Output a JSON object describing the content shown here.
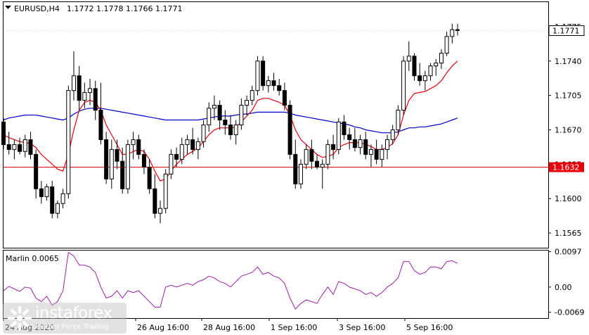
{
  "header": {
    "symbol": "EURUSD,H4",
    "ohlc": "1.1772 1.1778 1.1766 1.1771"
  },
  "price_tags": {
    "current": "1.1771",
    "level": "1.1632"
  },
  "indicator": {
    "title": "Marlin 0.0065",
    "ticks": [
      "0.0097",
      "0.00",
      "-0.0069"
    ]
  },
  "watermark": {
    "name": "instaforex",
    "tagline": "Instant Forex Trading"
  },
  "colors": {
    "bull_body": "#ffffff",
    "bear_body": "#000000",
    "ma_fast": "#e8000b",
    "ma_slow": "#0000cc",
    "level_line": "#e8000b",
    "oscillator": "#9b1fa8",
    "price_tag_bg": "#e8000b"
  },
  "chart_data": {
    "type": "candlestick",
    "title": "EURUSD,H4",
    "y_ticks": [
      "1.1775",
      "1.1740",
      "1.1705",
      "1.1670",
      "1.1635",
      "1.1600",
      "1.1565"
    ],
    "x_ticks": [
      "24 Aug 2020",
      "26 Aug 16:00",
      "28 Aug 16:00",
      "1 Sep 16:00",
      "3 Sep 16:00",
      "5 Sep 16:00"
    ],
    "ylim": [
      1.155,
      1.18
    ],
    "horizontal_level": 1.1632,
    "candles": [
      [
        1.1678,
        1.1682,
        1.165,
        1.1655
      ],
      [
        1.1655,
        1.1668,
        1.1645,
        1.165
      ],
      [
        1.165,
        1.166,
        1.164,
        1.1655
      ],
      [
        1.1655,
        1.1662,
        1.1645,
        1.1648
      ],
      [
        1.1648,
        1.1665,
        1.1642,
        1.166
      ],
      [
        1.166,
        1.1668,
        1.164,
        1.1645
      ],
      [
        1.1645,
        1.165,
        1.16,
        1.161
      ],
      [
        1.161,
        1.1618,
        1.1595,
        1.1602
      ],
      [
        1.1602,
        1.1615,
        1.1598,
        1.1612
      ],
      [
        1.1612,
        1.1618,
        1.158,
        1.1585
      ],
      [
        1.1585,
        1.1598,
        1.158,
        1.1595
      ],
      [
        1.1595,
        1.161,
        1.159,
        1.1605
      ],
      [
        1.1605,
        1.1715,
        1.16,
        1.171
      ],
      [
        1.171,
        1.175,
        1.17,
        1.1725
      ],
      [
        1.1725,
        1.1735,
        1.169,
        1.17
      ],
      [
        1.17,
        1.1718,
        1.1692,
        1.1708
      ],
      [
        1.1708,
        1.1722,
        1.1695,
        1.1712
      ],
      [
        1.1712,
        1.172,
        1.168,
        1.169
      ],
      [
        1.169,
        1.1718,
        1.1655,
        1.166
      ],
      [
        1.166,
        1.1668,
        1.1615,
        1.162
      ],
      [
        1.162,
        1.166,
        1.161,
        1.165
      ],
      [
        1.165,
        1.166,
        1.163,
        1.1638
      ],
      [
        1.1638,
        1.1652,
        1.1605,
        1.161
      ],
      [
        1.161,
        1.166,
        1.1605,
        1.1655
      ],
      [
        1.1655,
        1.1668,
        1.164,
        1.166
      ],
      [
        1.166,
        1.1665,
        1.164,
        1.1645
      ],
      [
        1.1645,
        1.165,
        1.1625,
        1.1632
      ],
      [
        1.1632,
        1.164,
        1.1605,
        1.161
      ],
      [
        1.161,
        1.1625,
        1.158,
        1.1585
      ],
      [
        1.1585,
        1.1598,
        1.1575,
        1.159
      ],
      [
        1.159,
        1.163,
        1.1585,
        1.1625
      ],
      [
        1.1625,
        1.165,
        1.162,
        1.1645
      ],
      [
        1.1645,
        1.1652,
        1.1632,
        1.164
      ],
      [
        1.164,
        1.1662,
        1.1635,
        1.1655
      ],
      [
        1.1655,
        1.1665,
        1.1645,
        1.166
      ],
      [
        1.166,
        1.1672,
        1.1645,
        1.165
      ],
      [
        1.165,
        1.1662,
        1.164,
        1.1658
      ],
      [
        1.1658,
        1.168,
        1.1652,
        1.1675
      ],
      [
        1.1675,
        1.1698,
        1.1668,
        1.1692
      ],
      [
        1.1692,
        1.1705,
        1.168,
        1.1695
      ],
      [
        1.1695,
        1.17,
        1.167,
        1.168
      ],
      [
        1.168,
        1.169,
        1.1665,
        1.1675
      ],
      [
        1.1675,
        1.1685,
        1.166,
        1.1665
      ],
      [
        1.1665,
        1.168,
        1.1655,
        1.1675
      ],
      [
        1.1675,
        1.1702,
        1.167,
        1.1695
      ],
      [
        1.1695,
        1.1705,
        1.1685,
        1.17
      ],
      [
        1.17,
        1.1715,
        1.1695,
        1.171
      ],
      [
        1.171,
        1.1745,
        1.1705,
        1.174
      ],
      [
        1.174,
        1.1745,
        1.171,
        1.1715
      ],
      [
        1.1715,
        1.1725,
        1.1708,
        1.172
      ],
      [
        1.172,
        1.1728,
        1.171,
        1.1715
      ],
      [
        1.1715,
        1.1722,
        1.1705,
        1.171
      ],
      [
        1.171,
        1.1718,
        1.169,
        1.1695
      ],
      [
        1.1695,
        1.17,
        1.164,
        1.1645
      ],
      [
        1.1645,
        1.166,
        1.161,
        1.1615
      ],
      [
        1.1615,
        1.164,
        1.161,
        1.1635
      ],
      [
        1.1635,
        1.1655,
        1.163,
        1.165
      ],
      [
        1.165,
        1.166,
        1.163,
        1.1638
      ],
      [
        1.1638,
        1.1645,
        1.163,
        1.1632
      ],
      [
        1.1632,
        1.164,
        1.161,
        1.1635
      ],
      [
        1.1635,
        1.166,
        1.163,
        1.1655
      ],
      [
        1.1655,
        1.1665,
        1.164,
        1.165
      ],
      [
        1.165,
        1.1682,
        1.1645,
        1.1678
      ],
      [
        1.1678,
        1.1685,
        1.166,
        1.1665
      ],
      [
        1.1665,
        1.1672,
        1.165,
        1.166
      ],
      [
        1.166,
        1.1672,
        1.1648,
        1.1652
      ],
      [
        1.1652,
        1.1665,
        1.1645,
        1.166
      ],
      [
        1.166,
        1.1668,
        1.164,
        1.1645
      ],
      [
        1.1645,
        1.1655,
        1.1632,
        1.165
      ],
      [
        1.165,
        1.166,
        1.1635,
        1.164
      ],
      [
        1.164,
        1.1655,
        1.1632,
        1.165
      ],
      [
        1.165,
        1.1665,
        1.164,
        1.166
      ],
      [
        1.166,
        1.1675,
        1.1655,
        1.167
      ],
      [
        1.167,
        1.1695,
        1.1665,
        1.169
      ],
      [
        1.169,
        1.1745,
        1.1685,
        1.174
      ],
      [
        1.174,
        1.176,
        1.173,
        1.1745
      ],
      [
        1.1745,
        1.1748,
        1.172,
        1.1725
      ],
      [
        1.1725,
        1.1738,
        1.1715,
        1.172
      ],
      [
        1.172,
        1.173,
        1.171,
        1.1725
      ],
      [
        1.1725,
        1.1738,
        1.172,
        1.1735
      ],
      [
        1.1735,
        1.1742,
        1.1725,
        1.1738
      ],
      [
        1.1738,
        1.1752,
        1.1732,
        1.1748
      ],
      [
        1.1748,
        1.177,
        1.1745,
        1.1765
      ],
      [
        1.1765,
        1.1778,
        1.1758,
        1.1772
      ],
      [
        1.1772,
        1.1778,
        1.1766,
        1.1771
      ]
    ],
    "ma_fast": [
      1.1665,
      1.1662,
      1.166,
      1.1658,
      1.1657,
      1.1656,
      1.1652,
      1.1645,
      1.164,
      1.1635,
      1.163,
      1.1628,
      1.1645,
      1.167,
      1.169,
      1.1698,
      1.17,
      1.1698,
      1.169,
      1.1675,
      1.1665,
      1.1655,
      1.1645,
      1.1645,
      1.1648,
      1.165,
      1.1648,
      1.164,
      1.1628,
      1.1618,
      1.162,
      1.1628,
      1.1635,
      1.164,
      1.1645,
      1.1648,
      1.1652,
      1.1658,
      1.1665,
      1.167,
      1.1672,
      1.1672,
      1.1672,
      1.1673,
      1.1678,
      1.1684,
      1.169,
      1.17,
      1.1702,
      1.1702,
      1.17,
      1.1698,
      1.1695,
      1.1685,
      1.167,
      1.166,
      1.1655,
      1.165,
      1.1645,
      1.1642,
      1.1643,
      1.1645,
      1.1652,
      1.1655,
      1.1657,
      1.1657,
      1.1657,
      1.1655,
      1.1653,
      1.165,
      1.165,
      1.1652,
      1.1656,
      1.1665,
      1.1685,
      1.17,
      1.1707,
      1.1708,
      1.1709,
      1.1712,
      1.1715,
      1.172,
      1.1728,
      1.1735,
      1.174
    ],
    "ma_slow": [
      1.168,
      1.1682,
      1.1683,
      1.1684,
      1.1685,
      1.1685,
      1.1685,
      1.1684,
      1.1683,
      1.1682,
      1.1681,
      1.168,
      1.1682,
      1.1686,
      1.1689,
      1.1691,
      1.1692,
      1.1692,
      1.1692,
      1.1691,
      1.169,
      1.1689,
      1.1688,
      1.1687,
      1.1686,
      1.1685,
      1.1684,
      1.1683,
      1.1682,
      1.1681,
      1.168,
      1.168,
      1.168,
      1.168,
      1.168,
      1.168,
      1.168,
      1.1681,
      1.1682,
      1.1683,
      1.1684,
      1.1684,
      1.1684,
      1.1685,
      1.1686,
      1.1686,
      1.1687,
      1.1688,
      1.1688,
      1.1688,
      1.1688,
      1.1688,
      1.1688,
      1.1687,
      1.1685,
      1.1684,
      1.1683,
      1.1682,
      1.1681,
      1.168,
      1.1679,
      1.1678,
      1.1677,
      1.1676,
      1.1675,
      1.1673,
      1.1672,
      1.167,
      1.1669,
      1.1668,
      1.1667,
      1.1667,
      1.1667,
      1.1668,
      1.167,
      1.1672,
      1.1672,
      1.1673,
      1.1673,
      1.1674,
      1.1675,
      1.1676,
      1.1678,
      1.168,
      1.1682
    ],
    "oscillator": {
      "ylim": [
        -0.0085,
        0.01
      ],
      "values": [
        -0.001,
        0.0002,
        -0.0005,
        -0.0012,
        0.0,
        -0.0003,
        -0.003,
        -0.004,
        -0.0025,
        -0.005,
        -0.004,
        -0.001,
        0.0095,
        0.0085,
        0.006,
        0.006,
        0.0055,
        0.004,
        0.0,
        -0.003,
        -0.0025,
        -0.001,
        -0.003,
        -0.001,
        -0.0015,
        -0.001,
        -0.0025,
        -0.004,
        -0.0055,
        -0.0055,
        0.0,
        0.0005,
        0.0,
        0.0005,
        0.001,
        0.0005,
        0.0015,
        0.002,
        0.003,
        0.0025,
        0.0015,
        0.001,
        0.0,
        0.0015,
        0.003,
        0.0035,
        0.004,
        0.0055,
        0.0035,
        0.004,
        0.003,
        0.0025,
        0.001,
        -0.003,
        -0.006,
        -0.0045,
        -0.0035,
        -0.004,
        -0.0045,
        -0.002,
        0.0,
        -0.002,
        0.0015,
        0.001,
        0.0,
        -0.0005,
        -0.001,
        -0.002,
        -0.0015,
        -0.0025,
        -0.0015,
        0.0,
        0.001,
        0.0025,
        0.007,
        0.007,
        0.0045,
        0.0035,
        0.004,
        0.0055,
        0.0055,
        0.005,
        0.007,
        0.0072,
        0.0065
      ]
    }
  }
}
